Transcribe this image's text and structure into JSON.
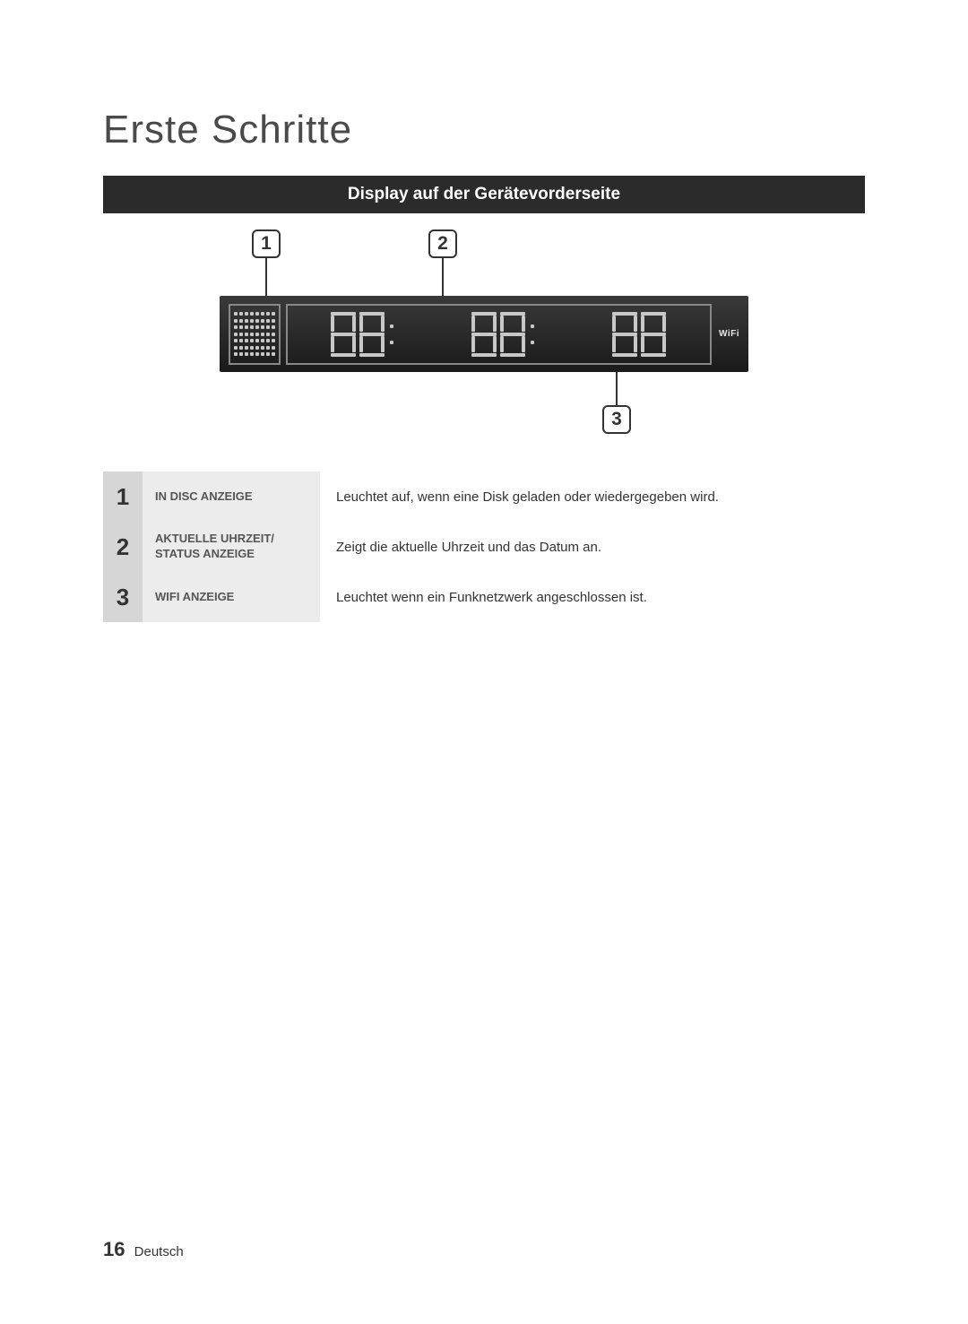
{
  "page_title": "Erste Schritte",
  "section_title": "Display auf der Gerätevorderseite",
  "callouts": {
    "c1": "1",
    "c2": "2",
    "c3": "3"
  },
  "wifi_label": "WiFi",
  "legend": [
    {
      "num": "1",
      "label": "IN DISC ANZEIGE",
      "desc": "Leuchtet auf, wenn eine Disk geladen oder wiedergegeben wird."
    },
    {
      "num": "2",
      "label": "AKTUELLE UHRZEIT/ STATUS ANZEIGE",
      "desc": "Zeigt die aktuelle Uhrzeit und das Datum an."
    },
    {
      "num": "3",
      "label": "WIFI ANZEIGE",
      "desc": "Leuchtet wenn ein Funknetzwerk angeschlossen ist."
    }
  ],
  "footer": {
    "page_number": "16",
    "language": "Deutsch"
  },
  "colors": {
    "section_bar_bg": "#2b2b2b",
    "legend_num_bg": "#d6d6d6",
    "legend_label_bg": "#ececec",
    "device_grad_top": "#3a3a3a",
    "device_grad_bottom": "#1a1a1a",
    "dot_color": "#c8c8c8"
  }
}
